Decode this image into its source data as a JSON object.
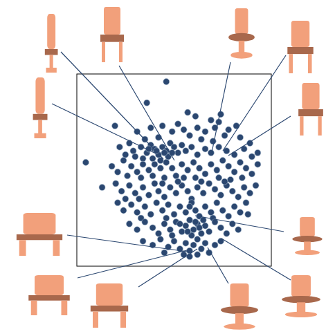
{
  "chart_data": {
    "type": "scatter",
    "marker": "circle",
    "color": "#2b4770",
    "tick_labels": false,
    "xlim": [
      0,
      100
    ],
    "ylim": [
      0,
      100
    ],
    "xticks": [],
    "yticks": [],
    "x": [
      46,
      36,
      19.6,
      74,
      57,
      61,
      69,
      73,
      52,
      44,
      38,
      31,
      49,
      55,
      62,
      66,
      71,
      78,
      82,
      76,
      42,
      35,
      27,
      58,
      64,
      70,
      84,
      89,
      22,
      29,
      33,
      36,
      38,
      40,
      42,
      44,
      46,
      48,
      50,
      52,
      54,
      47,
      43,
      39,
      34,
      30,
      25,
      56,
      59,
      62,
      66,
      69,
      73,
      77,
      81,
      86,
      90,
      93,
      41,
      45,
      37,
      49,
      4.6,
      18,
      21,
      24,
      28,
      31,
      34,
      37,
      40,
      43,
      46,
      49,
      51,
      54,
      57,
      60,
      63,
      66,
      69,
      72,
      75,
      78,
      81,
      84,
      87,
      90,
      93,
      26,
      33,
      39,
      45,
      55,
      61,
      73,
      79,
      85,
      13,
      20,
      23,
      27,
      30,
      34,
      37,
      40,
      42,
      45,
      48,
      51,
      54,
      57,
      59,
      62,
      65,
      68,
      71,
      74,
      77,
      80,
      83,
      86,
      89,
      92,
      25,
      32,
      44,
      52,
      64,
      76,
      21,
      24,
      28,
      31,
      35,
      38,
      41,
      44,
      47,
      50,
      53,
      56,
      59,
      61,
      63,
      66,
      69,
      72,
      75,
      78,
      81,
      84,
      87,
      33,
      46,
      58,
      70,
      88,
      27,
      31,
      35,
      39,
      42,
      45,
      48,
      51,
      54,
      56,
      58,
      60,
      62,
      64,
      66,
      68,
      71,
      74,
      77,
      80,
      83,
      59,
      57,
      61,
      63,
      65,
      53,
      49,
      34,
      39,
      43,
      47,
      50,
      53,
      56,
      58,
      60,
      62,
      64,
      66,
      68,
      71,
      74,
      58,
      55,
      62,
      45
    ],
    "y": [
      96,
      85,
      73,
      79,
      80,
      78,
      76,
      75,
      74,
      73,
      72,
      70,
      70,
      71,
      72,
      70,
      72,
      71,
      73,
      68,
      67,
      66,
      64,
      68,
      66,
      65,
      67,
      64,
      62,
      60,
      62,
      59,
      63,
      61,
      58,
      62,
      60,
      64,
      62,
      59,
      63,
      57,
      55,
      56,
      56,
      57,
      58,
      60,
      62,
      58,
      61,
      59,
      62,
      60,
      58,
      61,
      57,
      59,
      60,
      59,
      61,
      59,
      54,
      52,
      49,
      55,
      52,
      49,
      53,
      50,
      53,
      51,
      54,
      51,
      47,
      53,
      50,
      54,
      51,
      48,
      53,
      50,
      55,
      52,
      49,
      54,
      51,
      48,
      53,
      47,
      46,
      47,
      46,
      46,
      46,
      46,
      45,
      46,
      41,
      43,
      39,
      42,
      38,
      41,
      37,
      43,
      39,
      36,
      41,
      38,
      42,
      39,
      35,
      41,
      38,
      43,
      40,
      37,
      42,
      39,
      36,
      41,
      38,
      42,
      35,
      35,
      43,
      44,
      44,
      44,
      33,
      29,
      32,
      28,
      31,
      27,
      33,
      29,
      32,
      27,
      31,
      28,
      33,
      29,
      26,
      31,
      28,
      33,
      29,
      26,
      31,
      28,
      33,
      25,
      25,
      31,
      25,
      27,
      22,
      19,
      23,
      20,
      17,
      22,
      19,
      23,
      18,
      21,
      24,
      19,
      22,
      17,
      21,
      18,
      23,
      20,
      17,
      22,
      19,
      16,
      18,
      23,
      20,
      24,
      22,
      16,
      13,
      11,
      14,
      10,
      13,
      9,
      12,
      8,
      11,
      14,
      9,
      12,
      7,
      11,
      13,
      5,
      6,
      6,
      7
    ]
  }
}
